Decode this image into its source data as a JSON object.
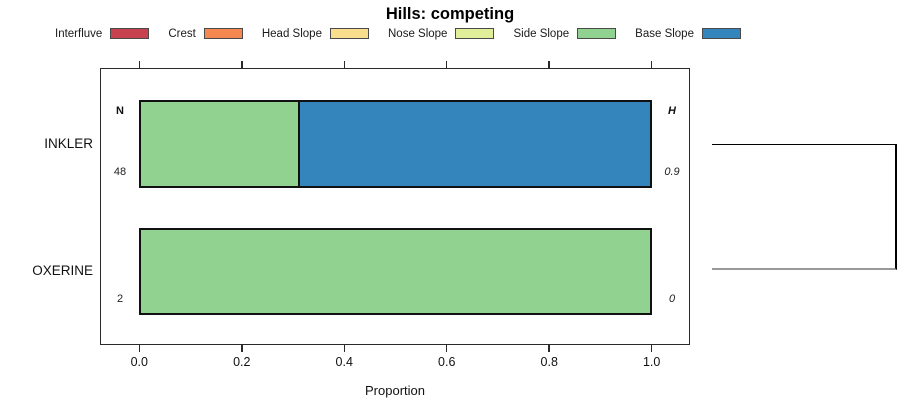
{
  "title": "Hills: competing",
  "legend": {
    "items": [
      {
        "label": "Interfluve",
        "color": "#C7414E"
      },
      {
        "label": "Crest",
        "color": "#F58750"
      },
      {
        "label": "Head Slope",
        "color": "#F9DE8D"
      },
      {
        "label": "Nose Slope",
        "color": "#E1EF9B"
      },
      {
        "label": "Side Slope",
        "color": "#92D290"
      },
      {
        "label": "Base Slope",
        "color": "#3385BC"
      }
    ]
  },
  "columns": {
    "left": "N",
    "right": "H"
  },
  "axis": {
    "xlabel": "Proportion",
    "ticks": [
      "0.0",
      "0.2",
      "0.4",
      "0.6",
      "0.8",
      "1.0"
    ]
  },
  "chart_data": {
    "type": "bar",
    "orientation": "horizontal-stacked",
    "title": "Hills: competing",
    "xlabel": "Proportion",
    "xlim": [
      0,
      1
    ],
    "xticks": [
      0.0,
      0.2,
      0.4,
      0.6,
      0.8,
      1.0
    ],
    "grid": false,
    "legend_position": "top",
    "categories": [
      "INKLER",
      "OXERINE"
    ],
    "series": [
      {
        "name": "Interfluve",
        "color": "#C7414E",
        "values": [
          0,
          0
        ]
      },
      {
        "name": "Crest",
        "color": "#F58750",
        "values": [
          0,
          0
        ]
      },
      {
        "name": "Head Slope",
        "color": "#F9DE8D",
        "values": [
          0,
          0
        ]
      },
      {
        "name": "Nose Slope",
        "color": "#E1EF9B",
        "values": [
          0,
          0
        ]
      },
      {
        "name": "Side Slope",
        "color": "#92D290",
        "values": [
          0.31,
          1.0
        ]
      },
      {
        "name": "Base Slope",
        "color": "#3385BC",
        "values": [
          0.69,
          0
        ]
      }
    ],
    "annotations": {
      "N": [
        "48",
        "2"
      ],
      "H": [
        "0.9",
        "0"
      ]
    }
  }
}
